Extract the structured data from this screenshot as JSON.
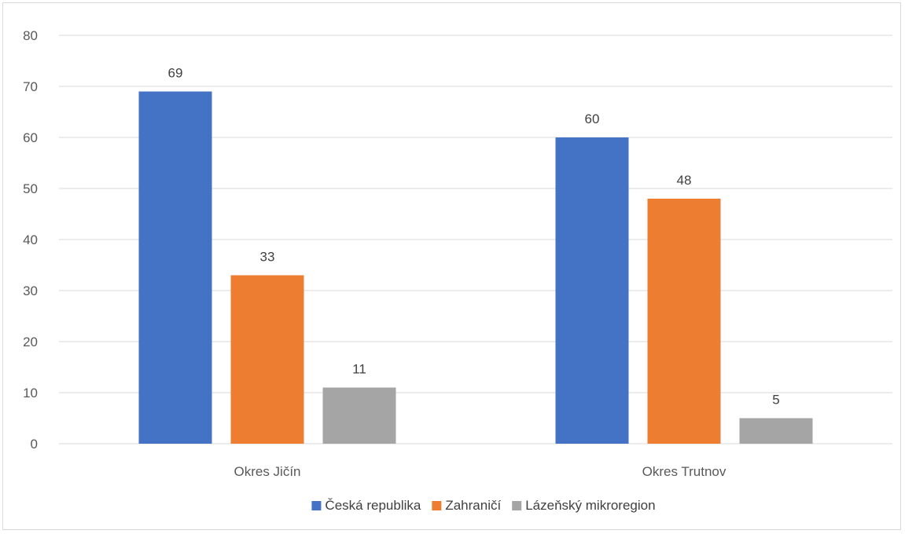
{
  "chart_data": {
    "type": "bar",
    "categories": [
      "Okres Jičín",
      "Okres Trutnov"
    ],
    "series": [
      {
        "name": "Česká republika",
        "color": "#4472c4",
        "values": [
          69,
          60
        ]
      },
      {
        "name": "Zahraničí",
        "color": "#ed7d31",
        "values": [
          33,
          48
        ]
      },
      {
        "name": "Lázeňský mikroregion",
        "color": "#a5a5a5",
        "values": [
          11,
          5
        ]
      }
    ],
    "yticks": [
      "0",
      "10",
      "20",
      "30",
      "40",
      "50",
      "60",
      "70",
      "80"
    ],
    "ylim": [
      0,
      80
    ],
    "grid": true,
    "legend_position": "bottom"
  }
}
